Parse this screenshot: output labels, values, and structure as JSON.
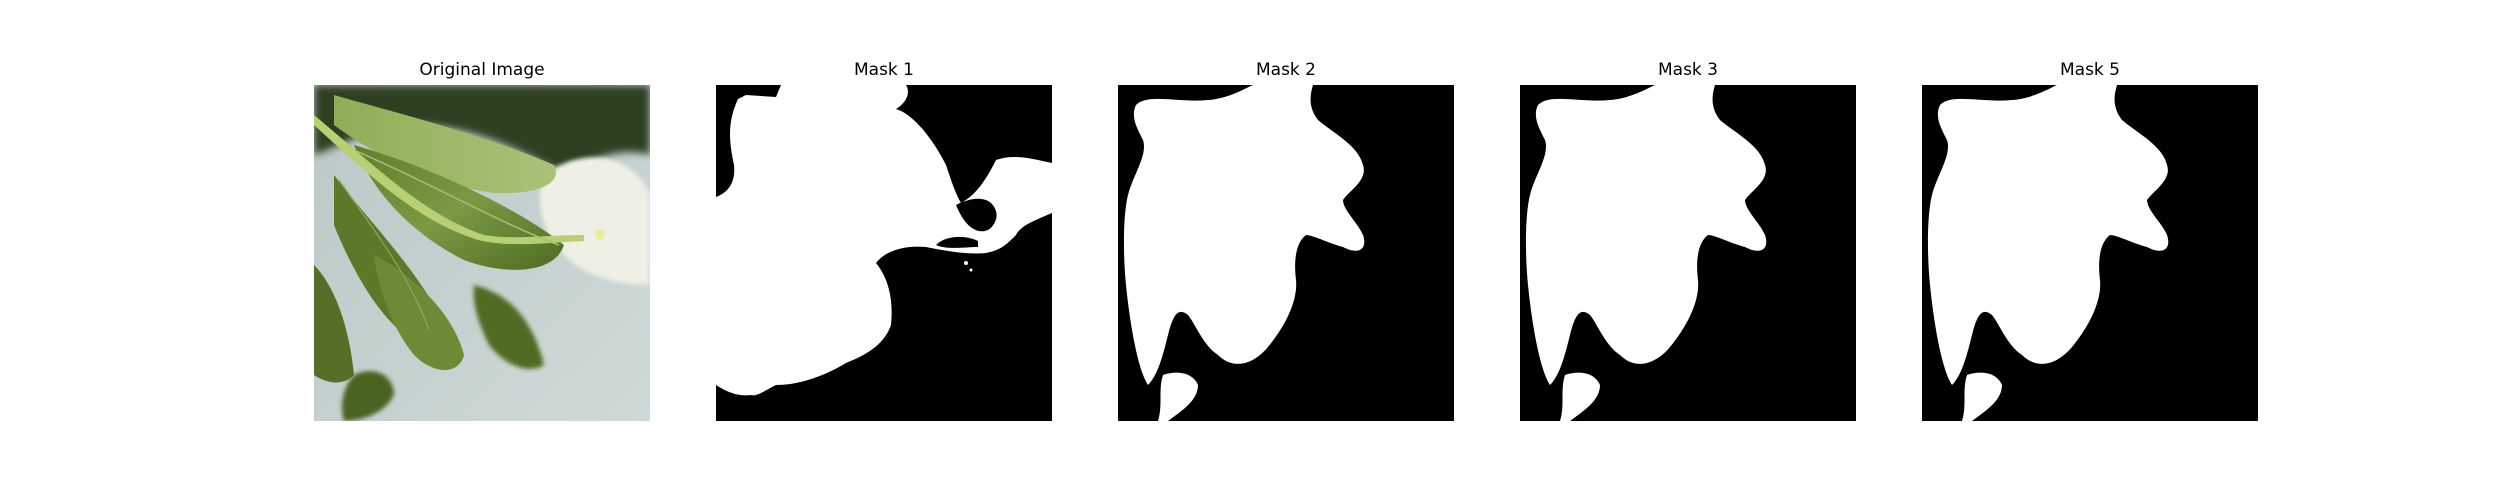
{
  "figure": {
    "panels": [
      {
        "title": "Original Image",
        "kind": "photo"
      },
      {
        "title": "Mask 1",
        "kind": "mask"
      },
      {
        "title": "Mask 2",
        "kind": "mask"
      },
      {
        "title": "Mask 3",
        "kind": "mask"
      },
      {
        "title": "Mask 5",
        "kind": "mask"
      }
    ]
  },
  "colors": {
    "background": "#ffffff",
    "mask_foreground": "#ffffff",
    "mask_background": "#000000",
    "leaf_dark": "#3f5a1e",
    "leaf_mid": "#6f8f3a",
    "leaf_light": "#9fb86a",
    "backdrop": "#c9d6d4"
  }
}
